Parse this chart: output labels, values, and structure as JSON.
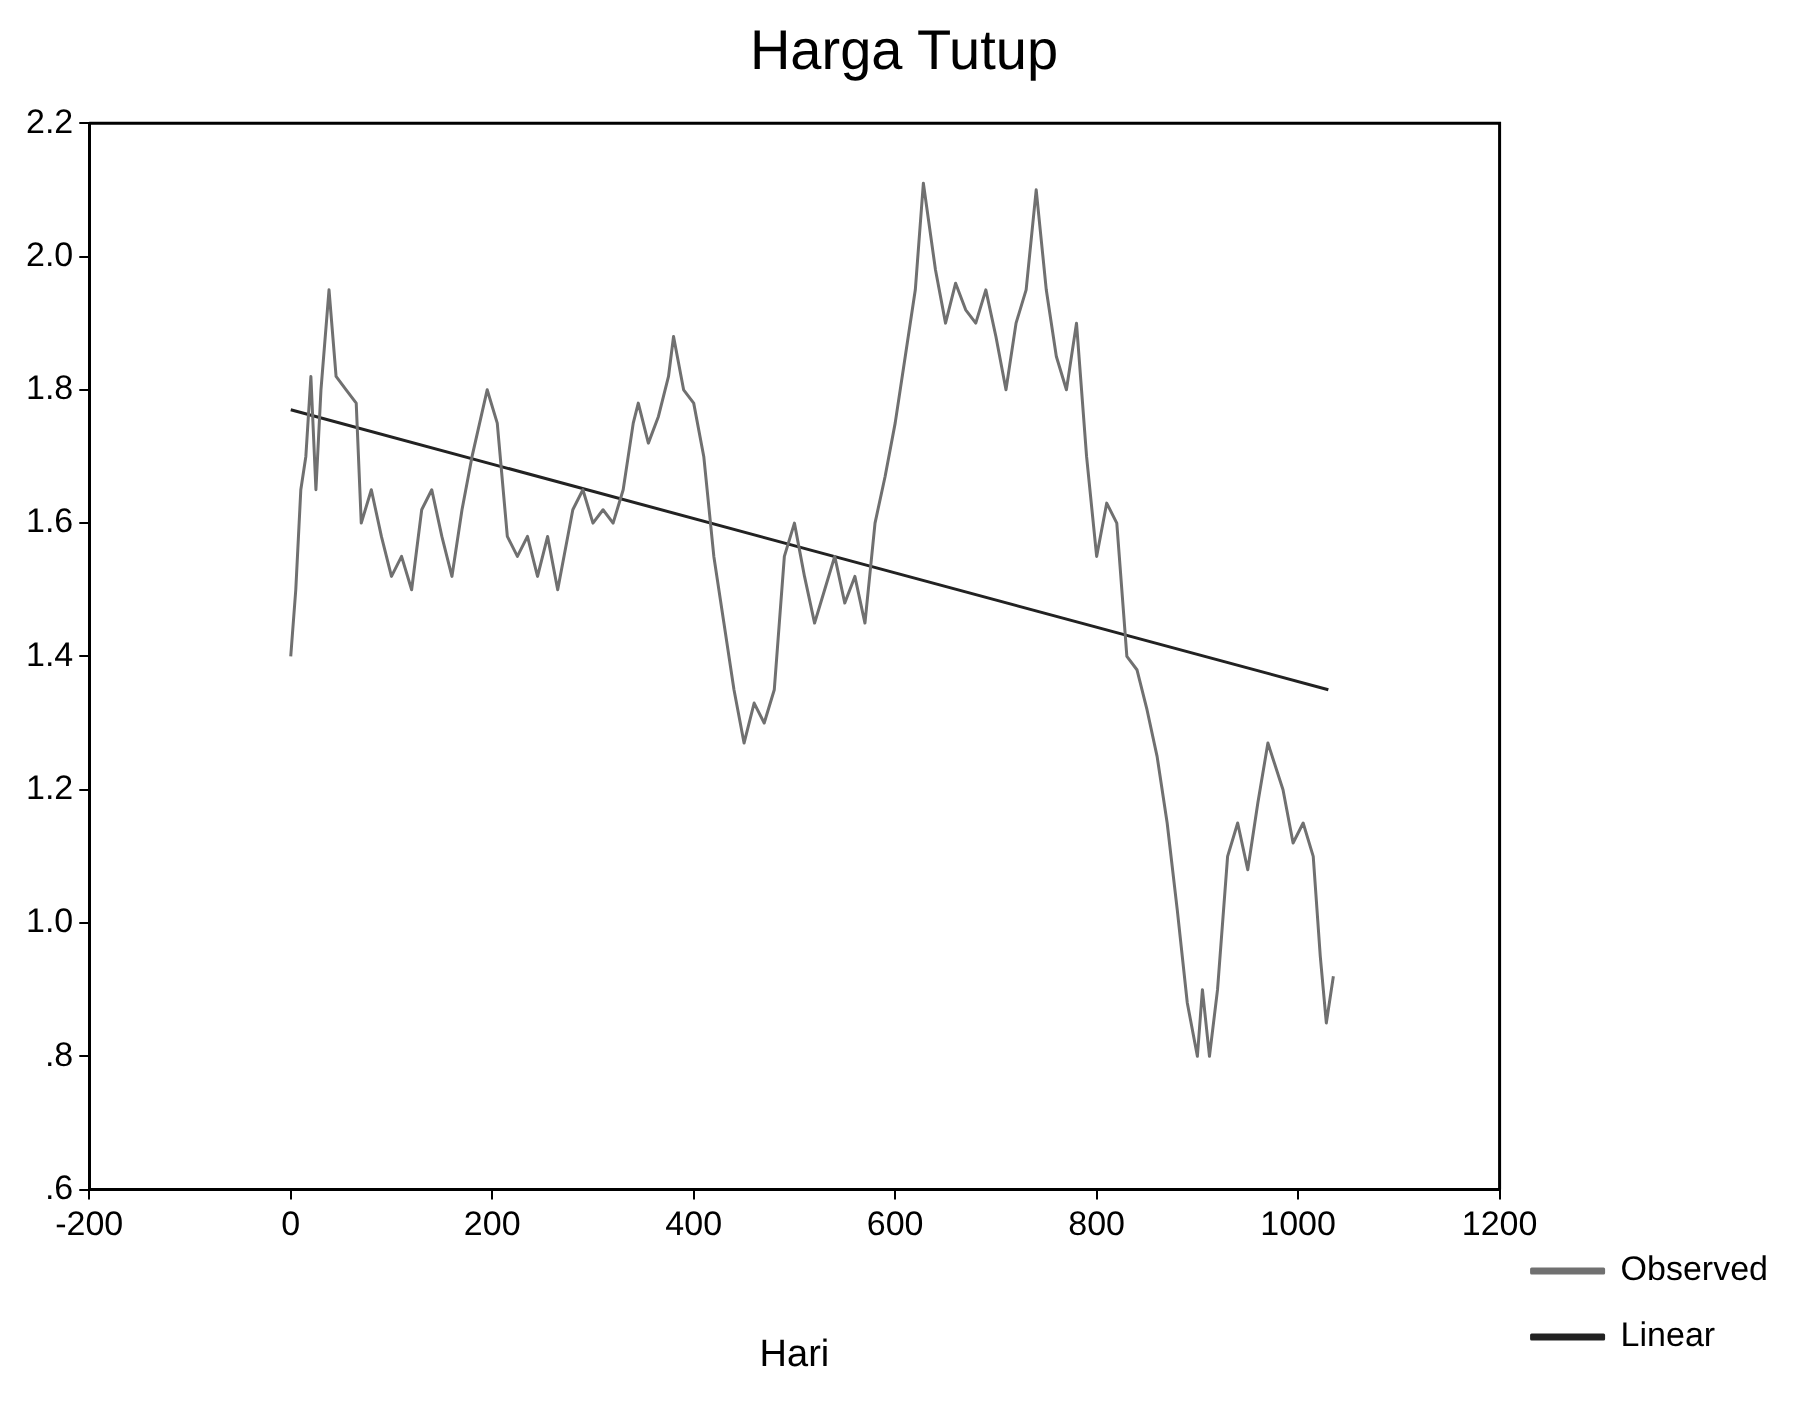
{
  "chart_data": {
    "type": "line",
    "title": "Harga Tutup",
    "xlabel": "Hari",
    "xlim": [
      -200,
      1200
    ],
    "xticks": [
      -200,
      0,
      200,
      400,
      600,
      800,
      1000,
      1200
    ],
    "ylim": [
      0.6,
      2.2
    ],
    "yticks": [
      {
        "value": 0.6,
        "label": ".6"
      },
      {
        "value": 0.8,
        "label": ".8"
      },
      {
        "value": 1.0,
        "label": "1.0"
      },
      {
        "value": 1.2,
        "label": "1.2"
      },
      {
        "value": 1.4,
        "label": "1.4"
      },
      {
        "value": 1.6,
        "label": "1.6"
      },
      {
        "value": 1.8,
        "label": "1.8"
      },
      {
        "value": 2.0,
        "label": "2.0"
      },
      {
        "value": 2.2,
        "label": "2.2"
      }
    ],
    "grid": false,
    "legend": "bottom right",
    "marker": "none",
    "line_style": "solid",
    "series": [
      {
        "name": "Observed",
        "color": "#707070",
        "x": [
          0,
          5,
          10,
          15,
          20,
          25,
          30,
          38,
          45,
          55,
          65,
          70,
          80,
          90,
          100,
          110,
          120,
          130,
          140,
          150,
          160,
          170,
          180,
          195,
          205,
          215,
          225,
          235,
          245,
          255,
          265,
          280,
          290,
          300,
          310,
          320,
          330,
          340,
          345,
          355,
          365,
          375,
          380,
          390,
          400,
          410,
          420,
          430,
          440,
          450,
          460,
          470,
          480,
          490,
          500,
          510,
          520,
          530,
          540,
          550,
          560,
          570,
          580,
          590,
          600,
          610,
          620,
          628,
          640,
          650,
          660,
          670,
          680,
          690,
          700,
          710,
          720,
          730,
          740,
          750,
          760,
          770,
          780,
          790,
          800,
          810,
          820,
          830,
          840,
          850,
          860,
          870,
          880,
          890,
          900,
          905,
          912,
          920,
          930,
          940,
          950,
          960,
          970,
          985,
          995,
          1005,
          1015,
          1022,
          1028,
          1035
        ],
        "values": [
          1.4,
          1.5,
          1.65,
          1.7,
          1.82,
          1.65,
          1.8,
          1.95,
          1.82,
          1.8,
          1.78,
          1.6,
          1.65,
          1.58,
          1.52,
          1.55,
          1.5,
          1.62,
          1.65,
          1.58,
          1.52,
          1.62,
          1.7,
          1.8,
          1.75,
          1.58,
          1.55,
          1.58,
          1.52,
          1.58,
          1.5,
          1.62,
          1.65,
          1.6,
          1.62,
          1.6,
          1.65,
          1.75,
          1.78,
          1.72,
          1.76,
          1.82,
          1.88,
          1.8,
          1.78,
          1.7,
          1.55,
          1.45,
          1.35,
          1.27,
          1.33,
          1.3,
          1.35,
          1.55,
          1.6,
          1.52,
          1.45,
          1.5,
          1.55,
          1.48,
          1.52,
          1.45,
          1.6,
          1.67,
          1.75,
          1.85,
          1.95,
          2.11,
          1.98,
          1.9,
          1.96,
          1.92,
          1.9,
          1.95,
          1.88,
          1.8,
          1.9,
          1.95,
          2.1,
          1.95,
          1.85,
          1.8,
          1.9,
          1.7,
          1.55,
          1.63,
          1.6,
          1.4,
          1.38,
          1.32,
          1.25,
          1.15,
          1.02,
          0.88,
          0.8,
          0.9,
          0.8,
          0.9,
          1.1,
          1.15,
          1.08,
          1.18,
          1.27,
          1.2,
          1.12,
          1.15,
          1.1,
          0.95,
          0.85,
          0.92
        ]
      },
      {
        "name": "Linear",
        "color": "#222222",
        "x": [
          0,
          1030
        ],
        "values": [
          1.77,
          1.35
        ]
      }
    ]
  }
}
